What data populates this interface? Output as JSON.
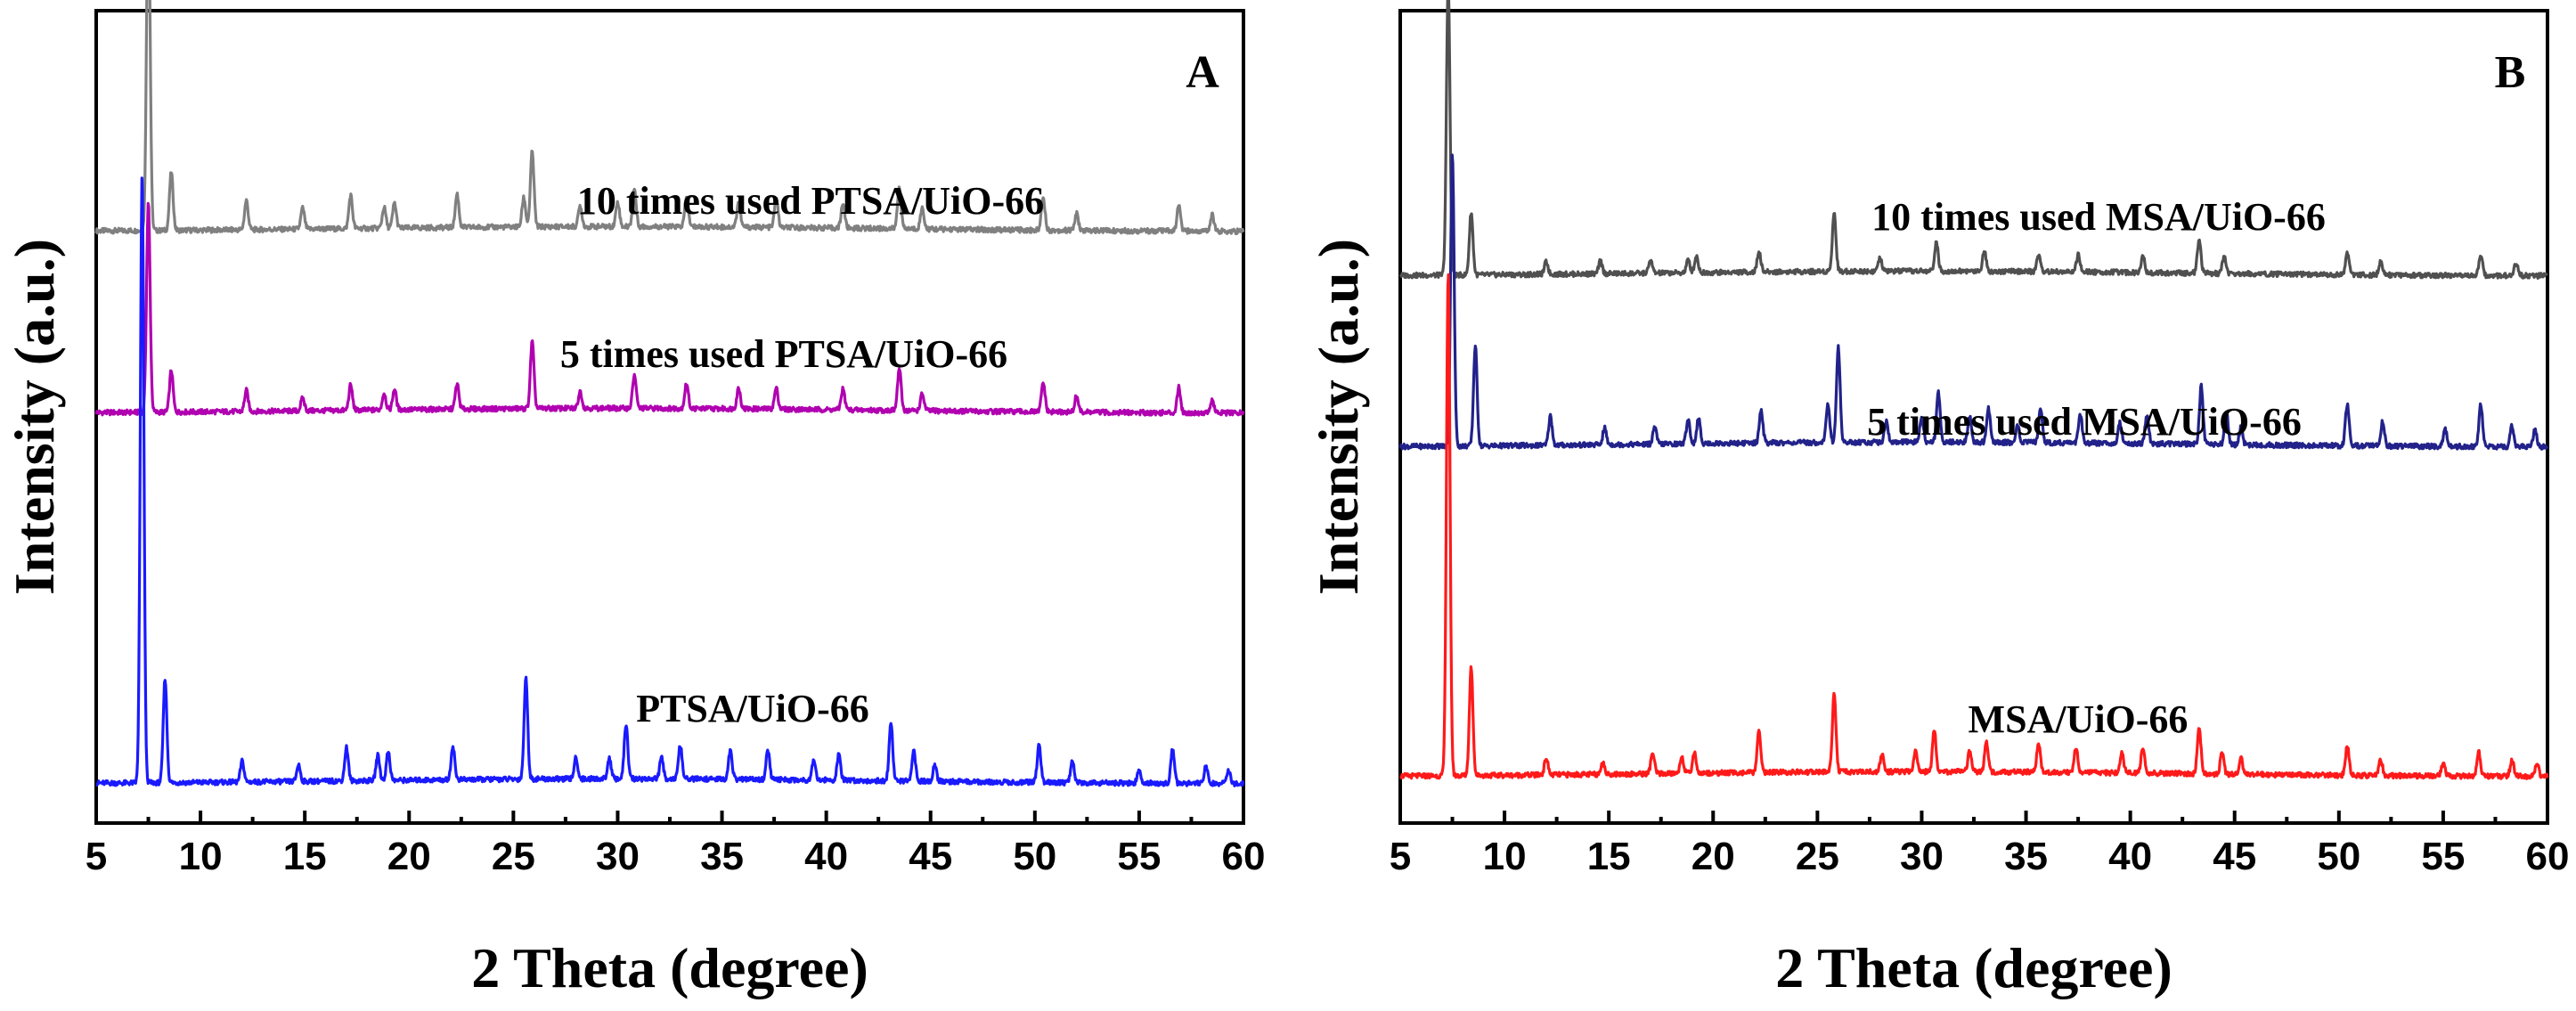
{
  "chart_data": [
    {
      "type": "line",
      "panel": "A",
      "xlabel": "2 Theta (degree)",
      "ylabel": "Intensity (a.u.)",
      "xlim": [
        5,
        60
      ],
      "xticks": [
        5,
        10,
        15,
        20,
        25,
        30,
        35,
        40,
        45,
        50,
        55,
        60
      ],
      "y_ticks_shown": false,
      "series": [
        {
          "name": "10 times used PTSA/UiO-66",
          "color": "#808080",
          "offset": 2.0,
          "peaks": [
            [
              7.5,
              0.82
            ],
            [
              8.6,
              0.14
            ],
            [
              12.2,
              0.07
            ],
            [
              14.9,
              0.05
            ],
            [
              17.2,
              0.08
            ],
            [
              18.8,
              0.05
            ],
            [
              19.3,
              0.06
            ],
            [
              22.3,
              0.08
            ],
            [
              25.5,
              0.07
            ],
            [
              25.9,
              0.18
            ],
            [
              28.2,
              0.05
            ],
            [
              30.0,
              0.06
            ],
            [
              30.8,
              0.09
            ],
            [
              33.3,
              0.07
            ],
            [
              35.8,
              0.06
            ],
            [
              37.6,
              0.07
            ],
            [
              40.8,
              0.06
            ],
            [
              43.5,
              0.1
            ],
            [
              44.6,
              0.05
            ],
            [
              50.4,
              0.08
            ],
            [
              52.0,
              0.04
            ],
            [
              56.9,
              0.06
            ],
            [
              58.5,
              0.04
            ]
          ]
        },
        {
          "name": "5 times used PTSA/UiO-66",
          "color": "#b000b0",
          "offset": 1.0,
          "peaks": [
            [
              7.5,
              0.5
            ],
            [
              8.6,
              0.1
            ],
            [
              12.2,
              0.05
            ],
            [
              14.9,
              0.03
            ],
            [
              17.2,
              0.06
            ],
            [
              18.8,
              0.04
            ],
            [
              19.3,
              0.05
            ],
            [
              22.3,
              0.06
            ],
            [
              25.9,
              0.16
            ],
            [
              28.2,
              0.04
            ],
            [
              30.8,
              0.08
            ],
            [
              33.3,
              0.06
            ],
            [
              35.8,
              0.05
            ],
            [
              37.6,
              0.05
            ],
            [
              40.8,
              0.05
            ],
            [
              43.5,
              0.1
            ],
            [
              44.6,
              0.04
            ],
            [
              50.4,
              0.07
            ],
            [
              52.0,
              0.04
            ],
            [
              56.9,
              0.06
            ],
            [
              58.5,
              0.03
            ]
          ]
        },
        {
          "name": "PTSA/UiO-66",
          "color": "#1a1aff",
          "offset": 0.0,
          "peaks": [
            [
              7.2,
              1.45
            ],
            [
              8.3,
              0.25
            ],
            [
              12.0,
              0.05
            ],
            [
              14.7,
              0.04
            ],
            [
              17.0,
              0.08
            ],
            [
              18.5,
              0.06
            ],
            [
              19.0,
              0.07
            ],
            [
              22.1,
              0.08
            ],
            [
              25.6,
              0.24
            ],
            [
              28.0,
              0.05
            ],
            [
              29.6,
              0.05
            ],
            [
              30.4,
              0.13
            ],
            [
              32.1,
              0.05
            ],
            [
              33.0,
              0.08
            ],
            [
              35.4,
              0.07
            ],
            [
              37.2,
              0.07
            ],
            [
              39.4,
              0.05
            ],
            [
              40.6,
              0.06
            ],
            [
              43.1,
              0.14
            ],
            [
              44.2,
              0.07
            ],
            [
              45.2,
              0.04
            ],
            [
              50.2,
              0.09
            ],
            [
              51.8,
              0.05
            ],
            [
              55.0,
              0.03
            ],
            [
              56.6,
              0.08
            ],
            [
              58.2,
              0.04
            ],
            [
              59.3,
              0.03
            ]
          ]
        }
      ]
    },
    {
      "type": "line",
      "panel": "B",
      "xlabel": "2 Theta (degree)",
      "ylabel": "Intensity (a.u.)",
      "xlim": [
        5,
        60
      ],
      "xticks": [
        5,
        10,
        15,
        20,
        25,
        30,
        35,
        40,
        45,
        50,
        55,
        60
      ],
      "y_ticks_shown": false,
      "series": [
        {
          "name": "10 times used MSA/UiO-66",
          "color": "#505050",
          "offset": 2.0,
          "peaks": [
            [
              7.3,
              0.7
            ],
            [
              8.4,
              0.15
            ],
            [
              12.0,
              0.03
            ],
            [
              14.6,
              0.03
            ],
            [
              17.0,
              0.03
            ],
            [
              18.8,
              0.03
            ],
            [
              19.2,
              0.04
            ],
            [
              22.2,
              0.05
            ],
            [
              25.8,
              0.14
            ],
            [
              28.0,
              0.03
            ],
            [
              30.7,
              0.07
            ],
            [
              33.0,
              0.05
            ],
            [
              35.6,
              0.04
            ],
            [
              37.5,
              0.04
            ],
            [
              40.6,
              0.04
            ],
            [
              43.3,
              0.08
            ],
            [
              44.5,
              0.04
            ],
            [
              50.4,
              0.05
            ],
            [
              52.0,
              0.03
            ],
            [
              56.8,
              0.05
            ],
            [
              58.5,
              0.03
            ]
          ]
        },
        {
          "name": "5 times used MSA/UiO-66",
          "color": "#22228a",
          "offset": 1.0,
          "peaks": [
            [
              7.5,
              0.7
            ],
            [
              8.6,
              0.24
            ],
            [
              12.2,
              0.07
            ],
            [
              14.8,
              0.04
            ],
            [
              17.2,
              0.04
            ],
            [
              18.8,
              0.06
            ],
            [
              19.3,
              0.06
            ],
            [
              22.3,
              0.08
            ],
            [
              25.5,
              0.09
            ],
            [
              26.0,
              0.23
            ],
            [
              28.3,
              0.05
            ],
            [
              30.0,
              0.06
            ],
            [
              30.8,
              0.12
            ],
            [
              32.3,
              0.06
            ],
            [
              33.2,
              0.08
            ],
            [
              34.6,
              0.04
            ],
            [
              35.7,
              0.08
            ],
            [
              37.6,
              0.07
            ],
            [
              39.5,
              0.05
            ],
            [
              40.8,
              0.07
            ],
            [
              43.4,
              0.14
            ],
            [
              44.6,
              0.08
            ],
            [
              45.3,
              0.04
            ],
            [
              50.4,
              0.1
            ],
            [
              52.1,
              0.06
            ],
            [
              55.1,
              0.04
            ],
            [
              56.8,
              0.1
            ],
            [
              58.3,
              0.05
            ],
            [
              59.4,
              0.04
            ]
          ]
        },
        {
          "name": "MSA/UiO-66",
          "color": "#ff1a1a",
          "offset": 0.0,
          "peaks": [
            [
              7.3,
              1.2
            ],
            [
              8.4,
              0.26
            ],
            [
              12.0,
              0.04
            ],
            [
              14.7,
              0.03
            ],
            [
              17.1,
              0.05
            ],
            [
              18.5,
              0.04
            ],
            [
              19.1,
              0.05
            ],
            [
              22.2,
              0.1
            ],
            [
              25.8,
              0.19
            ],
            [
              28.1,
              0.04
            ],
            [
              29.7,
              0.05
            ],
            [
              30.6,
              0.1
            ],
            [
              32.3,
              0.05
            ],
            [
              33.1,
              0.07
            ],
            [
              35.6,
              0.07
            ],
            [
              37.4,
              0.06
            ],
            [
              39.6,
              0.05
            ],
            [
              40.6,
              0.06
            ],
            [
              43.3,
              0.11
            ],
            [
              44.4,
              0.05
            ],
            [
              45.3,
              0.04
            ],
            [
              50.4,
              0.07
            ],
            [
              52.0,
              0.04
            ],
            [
              55.0,
              0.03
            ],
            [
              56.7,
              0.06
            ],
            [
              58.3,
              0.04
            ],
            [
              59.5,
              0.03
            ]
          ]
        }
      ]
    }
  ]
}
